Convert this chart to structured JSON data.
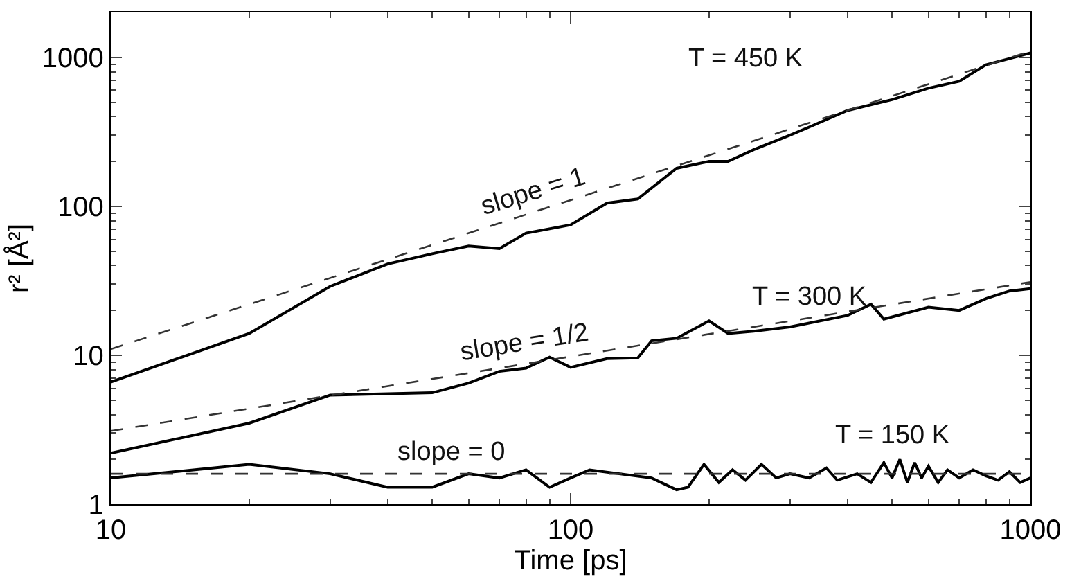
{
  "chart_data": {
    "type": "line",
    "xlabel": "Time [ps]",
    "ylabel": "r² [Å²]",
    "log": "xy",
    "legend": false,
    "marker": "none",
    "xlim": [
      10,
      1000
    ],
    "xticks": [
      10,
      100,
      1000
    ],
    "ylim": [
      1,
      2000
    ],
    "yticks": [
      1,
      10,
      100,
      1000
    ],
    "series": [
      {
        "name": "T = 450 K",
        "color": "#000000",
        "line_style": "solid",
        "x": [
          10,
          20,
          30,
          40,
          50,
          60,
          70,
          80,
          100,
          120,
          140,
          170,
          200,
          220,
          250,
          300,
          330,
          400,
          500,
          600,
          700,
          800,
          900,
          1000
        ],
        "values": [
          6.6,
          14,
          29,
          41,
          48,
          54,
          52,
          66,
          75,
          105,
          112,
          180,
          200,
          200,
          240,
          300,
          340,
          440,
          520,
          620,
          690,
          890,
          980,
          1070
        ]
      },
      {
        "name": "T = 300 K",
        "color": "#000000",
        "line_style": "solid",
        "x": [
          10,
          20,
          30,
          50,
          60,
          70,
          80,
          90,
          100,
          120,
          140,
          150,
          170,
          200,
          220,
          250,
          300,
          400,
          450,
          480,
          600,
          700,
          800,
          900,
          1000
        ],
        "values": [
          2.2,
          3.5,
          5.4,
          5.6,
          6.5,
          7.8,
          8.2,
          9.7,
          8.3,
          9.5,
          9.6,
          12.5,
          13,
          17,
          14,
          14.5,
          15.5,
          18.5,
          22,
          17.5,
          21,
          20,
          24,
          27,
          28
        ]
      },
      {
        "name": "T = 150 K",
        "color": "#000000",
        "line_style": "solid",
        "x": [
          10,
          20,
          30,
          40,
          50,
          60,
          70,
          80,
          90,
          100,
          110,
          150,
          170,
          180,
          195,
          210,
          225,
          240,
          260,
          280,
          300,
          330,
          360,
          380,
          420,
          450,
          480,
          500,
          520,
          540,
          560,
          580,
          600,
          630,
          660,
          700,
          750,
          800,
          850,
          900,
          950,
          1000
        ],
        "values": [
          1.5,
          1.85,
          1.6,
          1.3,
          1.3,
          1.6,
          1.5,
          1.7,
          1.3,
          1.5,
          1.7,
          1.5,
          1.25,
          1.3,
          1.85,
          1.4,
          1.7,
          1.45,
          1.85,
          1.5,
          1.6,
          1.5,
          1.75,
          1.45,
          1.6,
          1.4,
          1.9,
          1.5,
          2.0,
          1.4,
          1.9,
          1.5,
          1.8,
          1.4,
          1.7,
          1.5,
          1.7,
          1.55,
          1.45,
          1.65,
          1.4,
          1.5
        ]
      },
      {
        "name": "slope = 1",
        "color": "#333333",
        "line_style": "dashed",
        "x": [
          10,
          1000
        ],
        "values": [
          11,
          1100
        ]
      },
      {
        "name": "slope = 1/2",
        "color": "#333333",
        "line_style": "dashed",
        "x": [
          10,
          1000
        ],
        "values": [
          3.1,
          31
        ]
      },
      {
        "name": "slope = 0",
        "color": "#333333",
        "line_style": "dashed",
        "x": [
          10,
          1000
        ],
        "values": [
          1.6,
          1.6
        ]
      }
    ]
  }
}
